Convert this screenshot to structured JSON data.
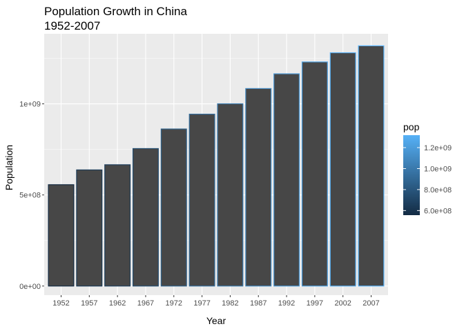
{
  "chart_data": {
    "type": "bar",
    "title": "Population Growth in China",
    "subtitle": "1952-2007",
    "xlabel": "Year",
    "ylabel": "Population",
    "categories": [
      "1952",
      "1957",
      "1962",
      "1967",
      "1972",
      "1977",
      "1982",
      "1987",
      "1992",
      "1997",
      "2002",
      "2007"
    ],
    "values": [
      556263527,
      637408000,
      665770000,
      754550000,
      862030000,
      943455000,
      1000281000,
      1084035000,
      1164970000,
      1230075000,
      1280400000,
      1318683096
    ],
    "ylim": [
      -50000000,
      1384617251
    ],
    "y_ticks": [
      0,
      500000000,
      1000000000
    ],
    "y_tick_labels": [
      "0e+00",
      "5e+08",
      "1e+09"
    ],
    "grid": true,
    "bar_fill": "#474747",
    "outline_mapped_to": "pop",
    "legend": {
      "title": "pop",
      "position": "right",
      "type": "colorbar",
      "low_color": "#132B43",
      "high_color": "#56B1F7",
      "breaks": [
        600000000,
        800000000,
        1000000000,
        1200000000
      ],
      "labels": [
        "6.0e+08",
        "8.0e+08",
        "1.0e+09",
        "1.2e+09"
      ]
    }
  },
  "colors": {
    "panel_background": "#ebebeb",
    "grid_major": "#ffffff",
    "tick_color": "#333333"
  }
}
